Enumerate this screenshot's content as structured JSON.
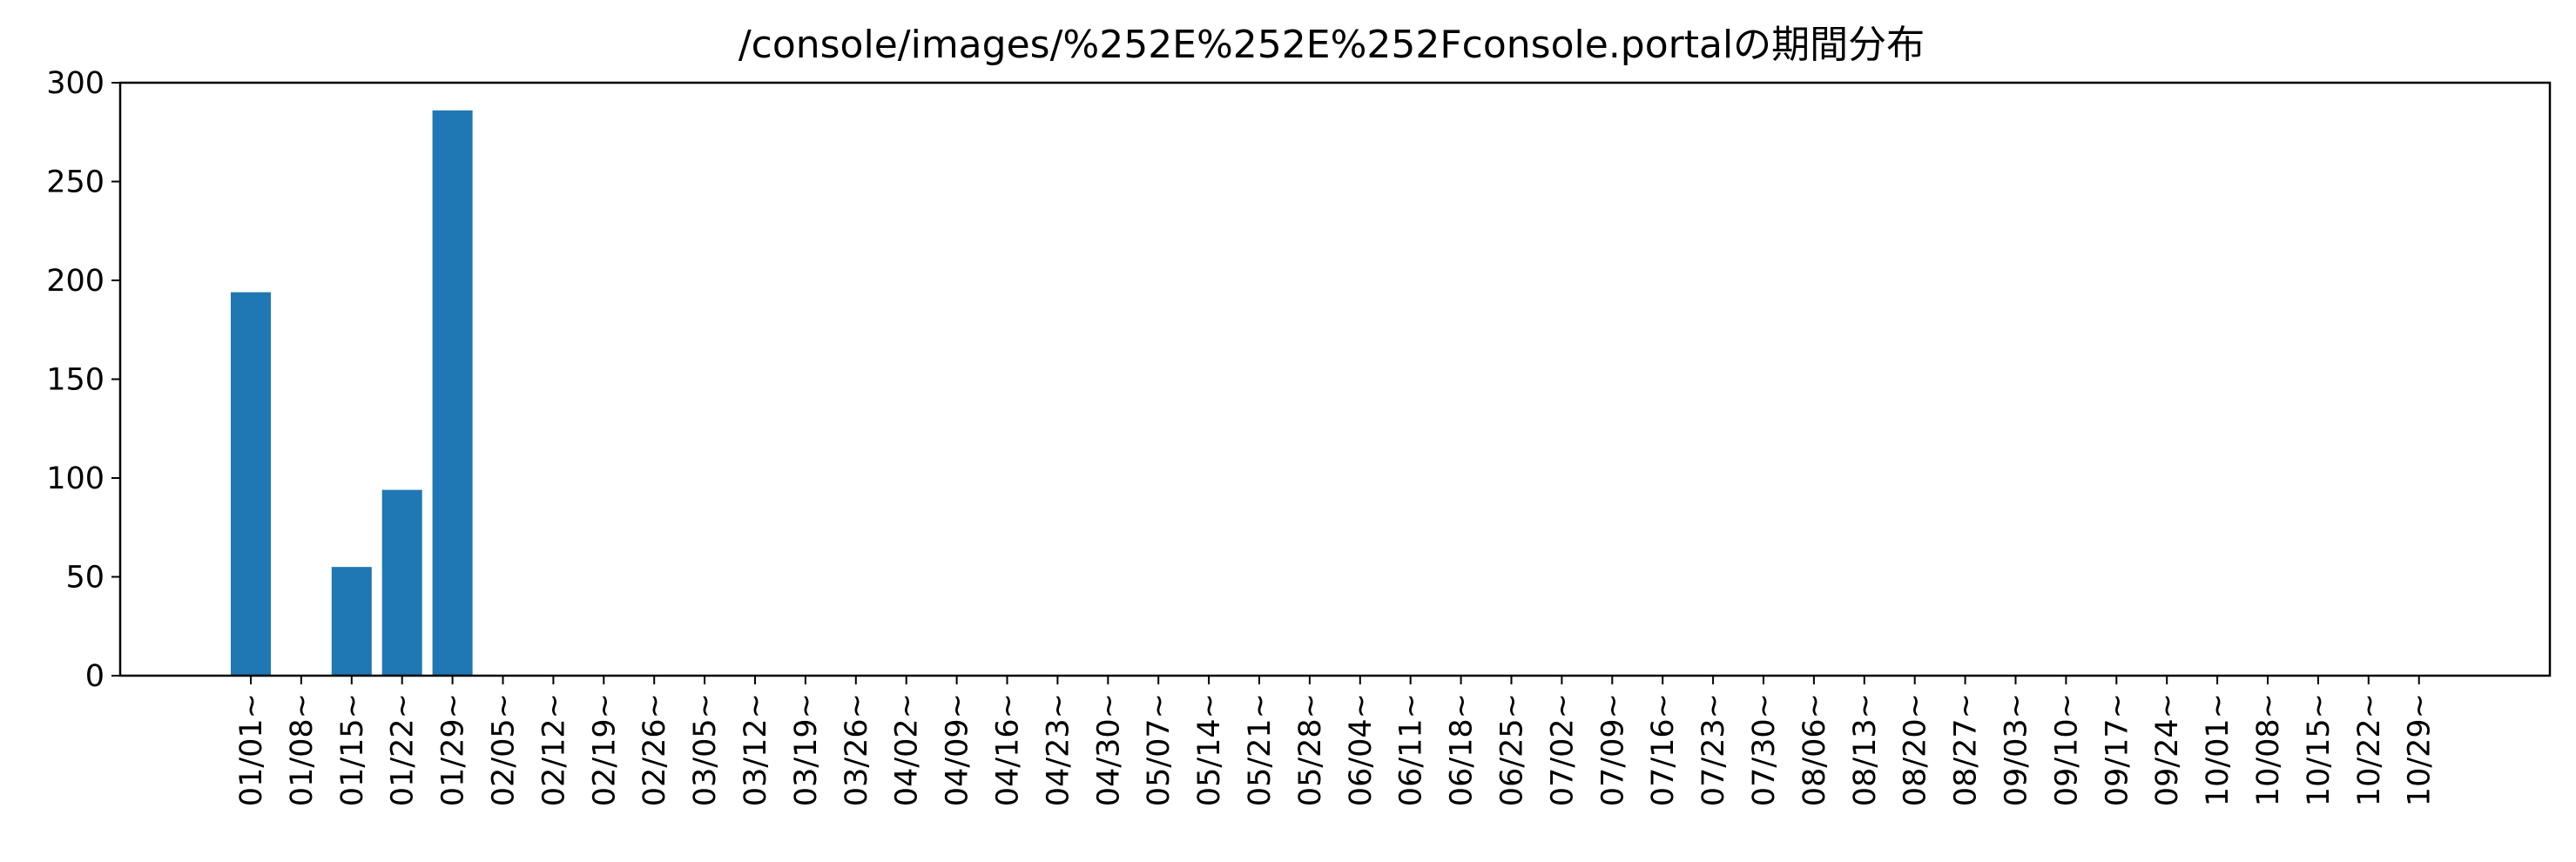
{
  "chart_data": {
    "type": "bar",
    "title": "/console/images/%252E%252E%252Fconsole.portalの期間分布",
    "xlabel": "",
    "ylabel": "",
    "ylim": [
      0,
      300
    ],
    "yticks": [
      0,
      50,
      100,
      150,
      200,
      250,
      300
    ],
    "categories": [
      "01/01~",
      "01/08~",
      "01/15~",
      "01/22~",
      "01/29~",
      "02/05~",
      "02/12~",
      "02/19~",
      "02/26~",
      "03/05~",
      "03/12~",
      "03/19~",
      "03/26~",
      "04/02~",
      "04/09~",
      "04/16~",
      "04/23~",
      "04/30~",
      "05/07~",
      "05/14~",
      "05/21~",
      "05/28~",
      "06/04~",
      "06/11~",
      "06/18~",
      "06/25~",
      "07/02~",
      "07/09~",
      "07/16~",
      "07/23~",
      "07/30~",
      "08/06~",
      "08/13~",
      "08/20~",
      "08/27~",
      "09/03~",
      "09/10~",
      "09/17~",
      "09/24~",
      "10/01~",
      "10/08~",
      "10/15~",
      "10/22~",
      "10/29~"
    ],
    "values": [
      194,
      0,
      55,
      94,
      286,
      0,
      0,
      0,
      0,
      0,
      0,
      0,
      0,
      0,
      0,
      0,
      0,
      0,
      0,
      0,
      0,
      0,
      0,
      0,
      0,
      0,
      0,
      0,
      0,
      0,
      0,
      0,
      0,
      0,
      0,
      0,
      0,
      0,
      0,
      0,
      0,
      0,
      0,
      0
    ],
    "bar_color": "#1f77b4",
    "grid": false,
    "legend": "none"
  }
}
